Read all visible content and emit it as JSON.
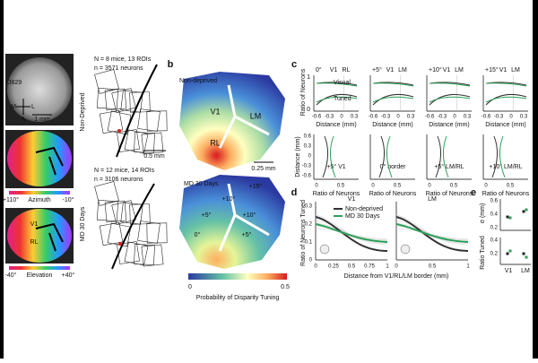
{
  "panel_a": {
    "mouse": "J829",
    "compass": [
      "M",
      "L",
      "A"
    ],
    "scale": "1 mm",
    "azimuth": {
      "left": "+110°",
      "label": "Azimuth",
      "right": "-10°"
    },
    "elevation": {
      "left": "-40°",
      "label": "Elevation",
      "right": "+40°",
      "areas": [
        "V1",
        "RL"
      ]
    },
    "rois": [
      {
        "group": "Non-Deprived",
        "mice": "N = 8 mice, 13 ROIs",
        "neurons": "n = 3571 neurons"
      },
      {
        "group": "MD 30 Days",
        "mice": "N = 12 mice, 14 ROIs",
        "neurons": "n = 3106 neurons"
      }
    ],
    "roi_scale": "0.5 mm"
  },
  "panel_b": {
    "label": "b",
    "maps": [
      {
        "title": "Non-deprived",
        "labels": [
          "V1",
          "LM",
          "RL"
        ]
      },
      {
        "title": "MD 30 Days",
        "labels": [
          "+15°",
          "+10°",
          "+5°",
          "+10°",
          "0°",
          "+5°"
        ]
      }
    ],
    "scale": "0.25 mm",
    "colorbar": {
      "min": "0",
      "max": "0.5",
      "label": "Probability of Disparity Tuning"
    }
  },
  "panel_c": {
    "label": "c",
    "top": {
      "ylabel": "Ratio of Neurons",
      "yticks": [
        "0",
        "1"
      ],
      "xticks": [
        "-0.6",
        "-0.3",
        "0",
        "0.3"
      ],
      "xlabel": "Distance (mm)",
      "plots": [
        {
          "title": "0°",
          "areas": [
            "V1",
            "RL"
          ]
        },
        {
          "title": "+5°",
          "areas": [
            "V1",
            "LM"
          ]
        },
        {
          "title": "+10°",
          "areas": [
            "V1",
            "LM"
          ]
        },
        {
          "title": "+15°",
          "areas": [
            "V1",
            "LM"
          ]
        }
      ],
      "legend": [
        "Visual",
        "Tuned"
      ]
    },
    "bottom": {
      "ylabel": "Distance (mm)",
      "yticks": [
        "0.6",
        "0.3",
        "0",
        "-0.3",
        "-0.6"
      ],
      "xticks": [
        "0",
        "0.5"
      ],
      "xlabel": "Ratio of Neurons",
      "plots": [
        "+5° V1",
        "0° border",
        "+5° LM/RL",
        "+10° LM/RL"
      ]
    }
  },
  "panel_d": {
    "label": "d",
    "ylabel": "Ratio of Neurons Tuned",
    "yticks": [
      "0",
      "0.1",
      "0.2",
      "0.3"
    ],
    "plots": [
      {
        "title": "V1",
        "xticks": [
          "0",
          "0.25",
          "0.5",
          "0.75",
          "1"
        ]
      },
      {
        "title": "LM",
        "xticks": [
          "0",
          "0.5",
          "1"
        ]
      }
    ],
    "xlabel": "Distance from V1/RL/LM border (mm)",
    "legend": [
      {
        "name": "Non-deprived",
        "color": "#333333"
      },
      {
        "name": "MD 30 Days",
        "color": "#2ca05a"
      }
    ]
  },
  "panel_e": {
    "label": "e",
    "top_ylabel": "σ (mm)",
    "top_yticks": [
      "0.2",
      "0.4",
      "0.6"
    ],
    "bottom_ylabel": "Ratio Tuned",
    "bottom_yticks": [
      "0.2",
      "0.4"
    ],
    "categories": [
      "V1",
      "LM"
    ]
  }
}
